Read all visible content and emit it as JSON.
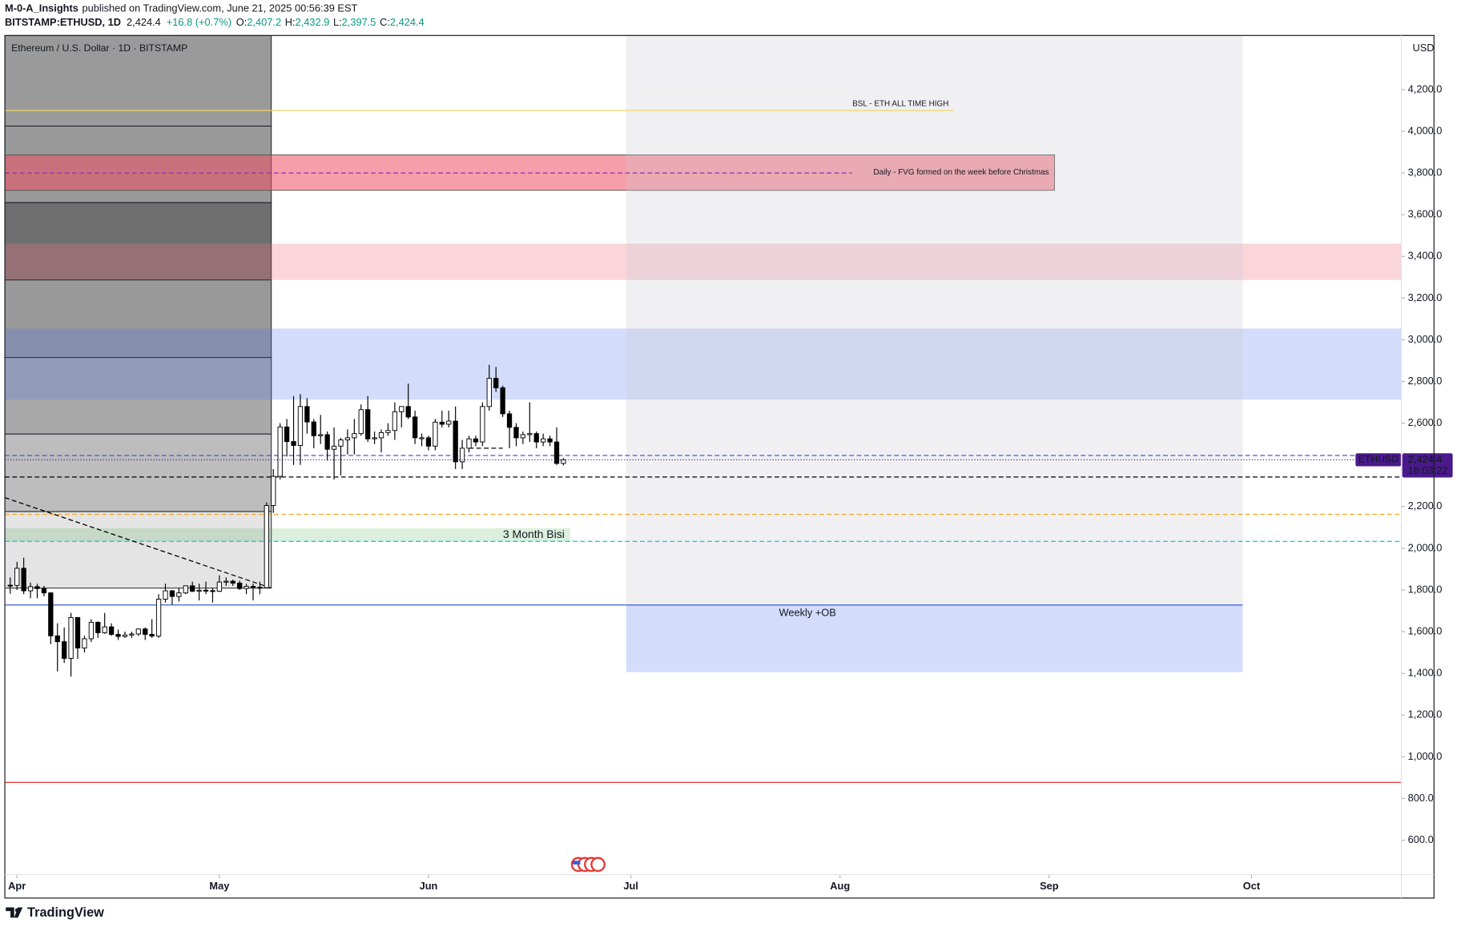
{
  "header": {
    "author": "M-0-A_Insights",
    "published": "published on TradingView.com, June 21, 2025 00:56:39 EST",
    "symbol": "BITSTAMP:ETHUSD, 1D",
    "price": "2,424.4",
    "change": "+16.8 (+0.7%)",
    "o_label": "O:",
    "o": "2,407.2",
    "h_label": "H:",
    "h": "2,432.9",
    "l_label": "L:",
    "l": "2,397.5",
    "c_label": "C:",
    "c": "2,424.4"
  },
  "footer": {
    "brand": "TradingView"
  },
  "chart_data": {
    "type": "candlestick",
    "title": "Ethereum / U.S. Dollar · 1D · BITSTAMP",
    "currency": "USD",
    "up_color": "#ffffff",
    "down_color": "#000000",
    "x": [
      0,
      1,
      2,
      3,
      4,
      5,
      6,
      7,
      8,
      9,
      10,
      11,
      12,
      13,
      14,
      15,
      16,
      17,
      18,
      19,
      20,
      21,
      22,
      23,
      24,
      25,
      26,
      27,
      28,
      29,
      30,
      31,
      32,
      33,
      34,
      35,
      36,
      37,
      38,
      39,
      40,
      41,
      42,
      43,
      44,
      45,
      46,
      47,
      48,
      49,
      50,
      51,
      52,
      53,
      54,
      55,
      56,
      57,
      58,
      59,
      60,
      61,
      62,
      63,
      64,
      65,
      66,
      67,
      68,
      69,
      70,
      71,
      72,
      73,
      74,
      75,
      76,
      77,
      78,
      79,
      80,
      81,
      82
    ],
    "open": [
      1823,
      1822,
      1904,
      1796,
      1816,
      1807,
      1786,
      1580,
      1552,
      1472,
      1668,
      1522,
      1566,
      1645,
      1595,
      1623,
      1587,
      1577,
      1584,
      1589,
      1613,
      1587,
      1579,
      1756,
      1796,
      1769,
      1786,
      1820,
      1794,
      1799,
      1797,
      1794,
      1838,
      1842,
      1833,
      1807,
      1817,
      1813,
      1811,
      2205,
      2345,
      2582,
      2512,
      2493,
      2680,
      2606,
      2540,
      2545,
      2475,
      2490,
      2520,
      2530,
      2550,
      2665,
      2525,
      2530,
      2555,
      2565,
      2655,
      2680,
      2630,
      2530,
      2530,
      2490,
      2605,
      2595,
      2610,
      2415,
      2480,
      2525,
      2510,
      2680,
      2815,
      2770,
      2645,
      2580,
      2530,
      2545,
      2550,
      2510,
      2525,
      2510,
      2407.2
    ],
    "high": [
      1860,
      1935,
      1955,
      1835,
      1830,
      1820,
      1790,
      1640,
      1620,
      1690,
      1670,
      1580,
      1660,
      1650,
      1690,
      1640,
      1610,
      1600,
      1600,
      1615,
      1620,
      1660,
      1780,
      1830,
      1800,
      1810,
      1820,
      1840,
      1830,
      1840,
      1810,
      1870,
      1860,
      1850,
      1845,
      1830,
      1830,
      1840,
      2220,
      2380,
      2600,
      2620,
      2730,
      2740,
      2720,
      2620,
      2640,
      2560,
      2580,
      2530,
      2570,
      2620,
      2690,
      2730,
      2560,
      2570,
      2600,
      2700,
      2680,
      2790,
      2660,
      2550,
      2540,
      2620,
      2660,
      2660,
      2680,
      2520,
      2540,
      2540,
      2700,
      2880,
      2870,
      2780,
      2660,
      2600,
      2560,
      2700,
      2560,
      2550,
      2540,
      2580,
      2432.9
    ],
    "low": [
      1782,
      1800,
      1780,
      1760,
      1760,
      1770,
      1540,
      1410,
      1450,
      1385,
      1470,
      1500,
      1550,
      1570,
      1590,
      1580,
      1560,
      1570,
      1570,
      1580,
      1560,
      1570,
      1570,
      1740,
      1730,
      1745,
      1780,
      1790,
      1750,
      1780,
      1740,
      1790,
      1820,
      1820,
      1800,
      1780,
      1750,
      1780,
      1810,
      2170,
      2330,
      2440,
      2400,
      2400,
      2550,
      2480,
      2500,
      2420,
      2330,
      2350,
      2450,
      2450,
      2540,
      2510,
      2500,
      2460,
      2540,
      2520,
      2580,
      2620,
      2500,
      2490,
      2470,
      2470,
      2580,
      2580,
      2380,
      2380,
      2460,
      2490,
      2490,
      2660,
      2750,
      2630,
      2480,
      2490,
      2500,
      2510,
      2480,
      2490,
      2490,
      2400,
      2397.5
    ],
    "close": [
      1822,
      1904,
      1796,
      1816,
      1807,
      1786,
      1580,
      1552,
      1472,
      1668,
      1522,
      1566,
      1645,
      1595,
      1623,
      1587,
      1577,
      1584,
      1589,
      1613,
      1587,
      1579,
      1756,
      1796,
      1769,
      1786,
      1820,
      1794,
      1799,
      1797,
      1794,
      1838,
      1842,
      1833,
      1807,
      1817,
      1813,
      1811,
      2205,
      2345,
      2582,
      2512,
      2493,
      2680,
      2606,
      2540,
      2545,
      2475,
      2490,
      2520,
      2530,
      2550,
      2665,
      2525,
      2530,
      2555,
      2565,
      2655,
      2680,
      2630,
      2530,
      2530,
      2490,
      2605,
      2595,
      2610,
      2415,
      2480,
      2525,
      2510,
      2680,
      2815,
      2770,
      2645,
      2580,
      2530,
      2545,
      2550,
      2510,
      2525,
      2510,
      2407,
      2424.4
    ],
    "xlim": [
      -0.8,
      206.2
    ],
    "xticks": [
      {
        "value": 1,
        "label": "Apr"
      },
      {
        "value": 31,
        "label": "May"
      },
      {
        "value": 62,
        "label": "Jun"
      },
      {
        "value": 92,
        "label": "Jul"
      },
      {
        "value": 123,
        "label": "Aug"
      },
      {
        "value": 154,
        "label": "Sep"
      },
      {
        "value": 184,
        "label": "Oct"
      }
    ],
    "ylim": [
      434.3,
      4459.7
    ],
    "yticks": [
      {
        "value": 600,
        "label": "600.0"
      },
      {
        "value": 800,
        "label": "800.0"
      },
      {
        "value": 1000,
        "label": "1,000.0"
      },
      {
        "value": 1200,
        "label": "1,200.0"
      },
      {
        "value": 1400,
        "label": "1,400.0"
      },
      {
        "value": 1600,
        "label": "1,600.0"
      },
      {
        "value": 1800,
        "label": "1,800.0"
      },
      {
        "value": 2000,
        "label": "2,000.0"
      },
      {
        "value": 2200,
        "label": "2,200.0"
      },
      {
        "value": 2400,
        "label": "2,400.0"
      },
      {
        "value": 2600,
        "label": "2,600.0"
      },
      {
        "value": 2800,
        "label": "2,800.0"
      },
      {
        "value": 3000,
        "label": "3,000.0"
      },
      {
        "value": 3200,
        "label": "3,200.0"
      },
      {
        "value": 3400,
        "label": "3,400.0"
      },
      {
        "value": 3600,
        "label": "3,600.0"
      },
      {
        "value": 3800,
        "label": "3,800.0"
      },
      {
        "value": 4000,
        "label": "4,000.0"
      },
      {
        "value": 4200,
        "label": "4,200.0"
      }
    ],
    "left_box": [
      {
        "x": [
          -0.8,
          38.7
        ],
        "y": [
          4025,
          4460
        ],
        "color": "#9a9a9a"
      },
      {
        "x": [
          -0.8,
          38.7
        ],
        "y": [
          3658,
          4025
        ],
        "color": "#999999"
      },
      {
        "x": [
          -0.8,
          38.7
        ],
        "y": [
          3287,
          3658
        ],
        "color": "#6f6f6f"
      },
      {
        "x": [
          -0.8,
          38.7
        ],
        "y": [
          2915,
          3287
        ],
        "color": "#999999"
      },
      {
        "x": [
          -0.8,
          38.7
        ],
        "y": [
          2548,
          2915
        ],
        "color": "#a9a9a9"
      },
      {
        "x": [
          -0.8,
          38.7
        ],
        "y": [
          2176,
          2548
        ],
        "color": "#bdbdbd"
      },
      {
        "x": [
          -0.8,
          38.7
        ],
        "y": [
          1809,
          2176
        ],
        "color": "#e4e4e4"
      }
    ],
    "zones": [
      {
        "x": [
          -0.8,
          154.8
        ],
        "y": [
          3717,
          3887
        ],
        "color": "rgba(238,80,100,0.55)",
        "label": "Daily - FVG formed on the week before Christmas",
        "label_color": "#ffffff"
      },
      {
        "x": [
          -0.8,
          206.2
        ],
        "y": [
          3287,
          3461
        ],
        "color": "rgba(240,120,135,0.3)"
      },
      {
        "x": [
          -0.8,
          206.2
        ],
        "y": [
          2713,
          3054
        ],
        "color": "rgba(80,120,240,0.25)"
      },
      {
        "x": [
          91.3,
          182.7
        ],
        "y": [
          1728,
          4460
        ],
        "color": "rgba(200,200,210,0.28)"
      },
      {
        "x": [
          91.3,
          182.7
        ],
        "y": [
          1406,
          1728
        ],
        "color": "rgba(80,120,240,0.25)",
        "label": "Weekly +OB",
        "label_color": "#3d6ee0"
      },
      {
        "x": [
          -0.8,
          83
        ],
        "y": [
          2033,
          2096
        ],
        "color": "rgba(76,175,80,0.2)",
        "label": "3 Month Bisi",
        "label_color": "#131722"
      }
    ],
    "lines": [
      {
        "x": [
          -0.8,
          139.8
        ],
        "y": [
          4100,
          4100
        ],
        "color": "#f2d36b",
        "dashed": false,
        "label": "BSL - ETH ALL TIME HIGH"
      },
      {
        "x": [
          -0.8,
          124.8
        ],
        "y": [
          3800,
          3800
        ],
        "color": "#9c27b0",
        "dashed": true
      },
      {
        "x": [
          -0.8,
          206.2
        ],
        "y": [
          2445,
          2445
        ],
        "color": "#3b5bdb",
        "dashed": true
      },
      {
        "x": [
          -0.8,
          206.2
        ],
        "y": [
          2342,
          2342
        ],
        "color": "#000000",
        "dashed": true
      },
      {
        "x": [
          -0.8,
          206.2
        ],
        "y": [
          2163,
          2163
        ],
        "color": "#f5a623",
        "dashed": true
      },
      {
        "x": [
          -0.8,
          206.2
        ],
        "y": [
          2033,
          2033
        ],
        "color": "#26c6da",
        "dashed": true
      },
      {
        "x": [
          -0.8,
          182.7
        ],
        "y": [
          1728,
          1728
        ],
        "color": "#3b5bdb",
        "dashed": false
      },
      {
        "x": [
          -0.8,
          206.2
        ],
        "y": [
          877,
          877
        ],
        "color": "#e53935",
        "dashed": false
      },
      {
        "x": [
          -0.8,
          38.7
        ],
        "y": [
          2243,
          1809
        ],
        "color": "#000000",
        "dashed": true
      },
      {
        "x": [
          68,
          73
        ],
        "y": [
          2480,
          2480
        ],
        "color": "#000000",
        "dashed": true
      }
    ],
    "last_price": {
      "symbol": "ETHUSD",
      "price": {
        "value": 2424.4,
        "label": "2,424.4"
      },
      "countdown": "18:03:22",
      "color": "#4a1a8c"
    }
  }
}
